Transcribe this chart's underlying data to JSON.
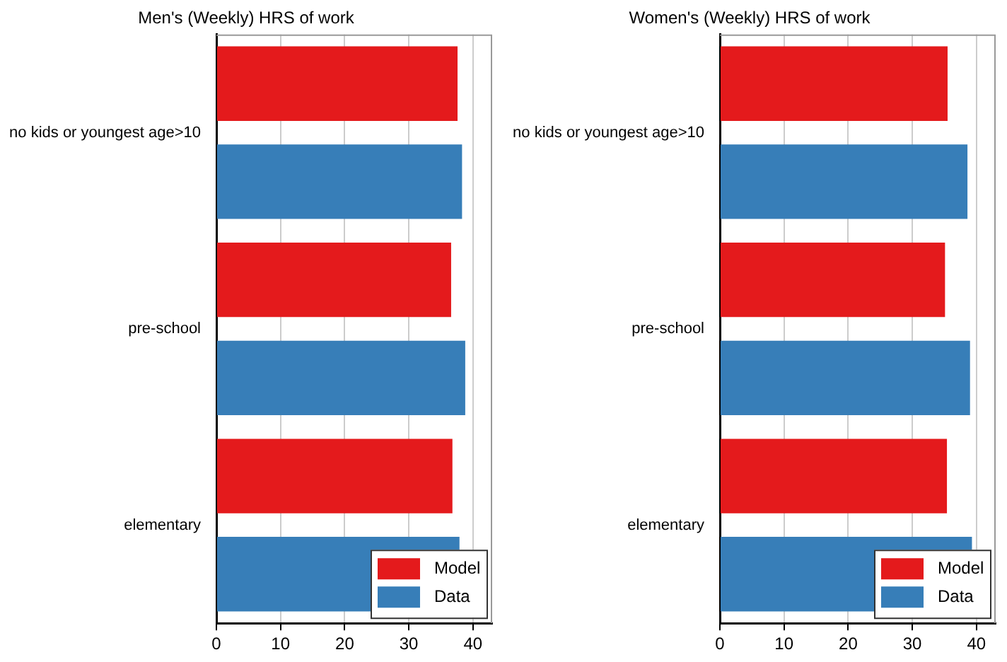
{
  "chart_data": [
    {
      "type": "bar",
      "orientation": "horizontal",
      "title": "Men's (Weekly) HRS of work",
      "categories": [
        "no kids or youngest age>10",
        "pre-school",
        "elementary"
      ],
      "series": [
        {
          "name": "Model",
          "color": "#e41a1c",
          "values": [
            37.6,
            36.6,
            36.8
          ]
        },
        {
          "name": "Data",
          "color": "#377eb8",
          "values": [
            38.3,
            38.8,
            37.9
          ]
        }
      ],
      "xlim": [
        0,
        43
      ],
      "xticks": [
        0,
        10,
        20,
        30,
        40
      ],
      "grid": "x",
      "legend": "bottom right"
    },
    {
      "type": "bar",
      "orientation": "horizontal",
      "title": "Women's (Weekly) HRS of work",
      "categories": [
        "no kids or youngest age>10",
        "pre-school",
        "elementary"
      ],
      "series": [
        {
          "name": "Model",
          "color": "#e41a1c",
          "values": [
            35.5,
            35.1,
            35.4
          ]
        },
        {
          "name": "Data",
          "color": "#377eb8",
          "values": [
            38.6,
            39.0,
            39.3
          ]
        }
      ],
      "xlim": [
        0,
        43
      ],
      "xticks": [
        0,
        10,
        20,
        30,
        40
      ],
      "grid": "x",
      "legend": "bottom right"
    }
  ]
}
